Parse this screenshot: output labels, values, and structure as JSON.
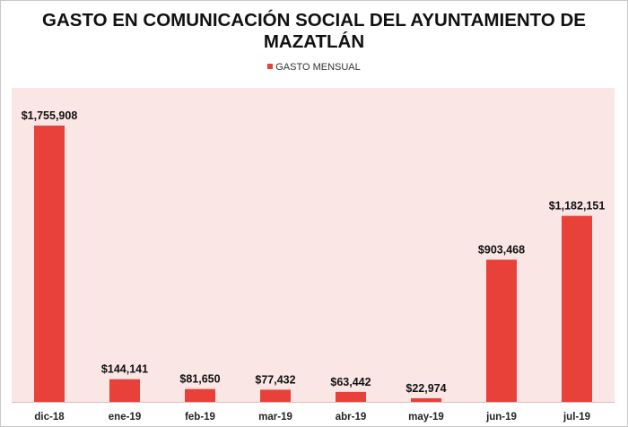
{
  "chart_data": {
    "type": "bar",
    "title": "GASTO EN COMUNICACIÓN SOCIAL DEL AYUNTAMIENTO DE MAZATLÁN",
    "title_lines": [
      "GASTO EN COMUNICACIÓN SOCIAL DEL AYUNTAMIENTO DE",
      "MAZATLÁN"
    ],
    "legend": {
      "position": "top",
      "entries": [
        "GASTO MENSUAL"
      ]
    },
    "categories": [
      "dic-18",
      "ene-19",
      "feb-19",
      "mar-19",
      "abr-19",
      "may-19",
      "jun-19",
      "jul-19"
    ],
    "series": [
      {
        "name": "GASTO MENSUAL",
        "color": "#e8413a",
        "values": [
          1755908,
          144141,
          81650,
          77432,
          63442,
          22974,
          903468,
          1182151
        ],
        "labels": [
          "$1,755,908",
          "$144,141",
          "$81,650",
          "$77,432",
          "$63,442",
          "$22,974",
          "$903,468",
          "$1,182,151"
        ]
      }
    ],
    "xlabel": "",
    "ylabel": "",
    "ylim": [
      0,
      1755908
    ],
    "grid": false,
    "plot_background": "#fbe6e6"
  }
}
